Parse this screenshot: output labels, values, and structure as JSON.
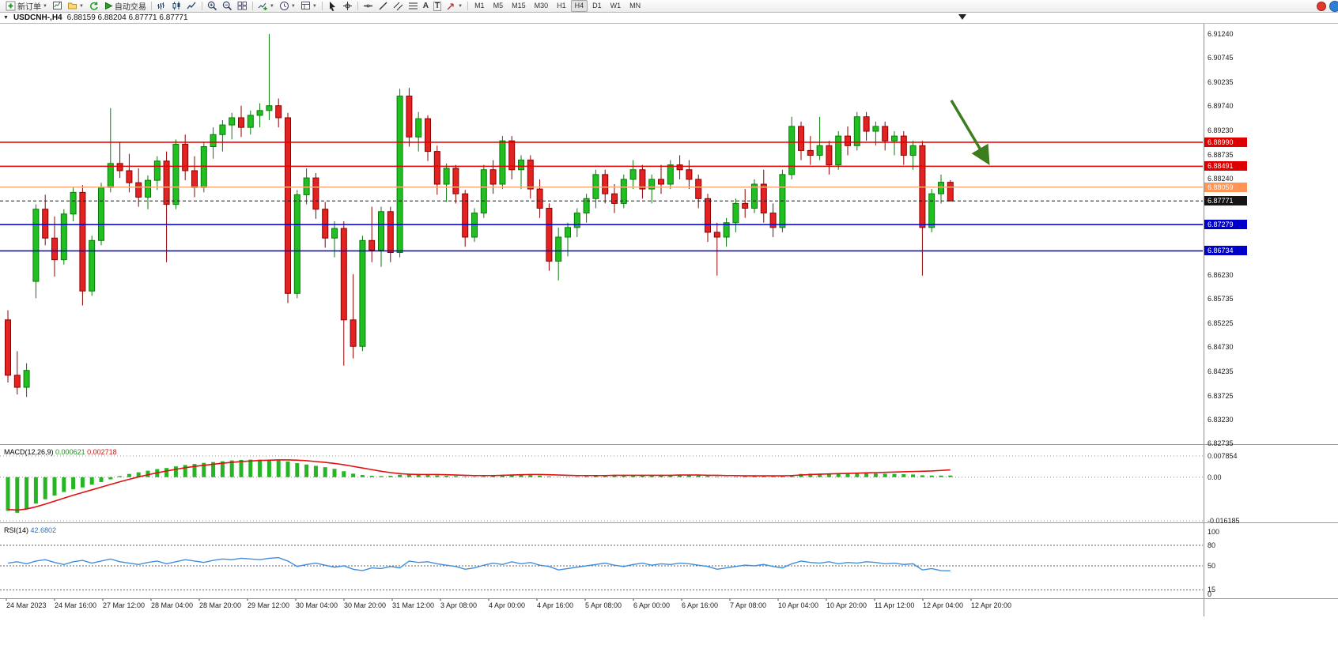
{
  "toolbar": {
    "new_order_label": "新订单",
    "autotrading_label": "自动交易",
    "text_tool_label": "A",
    "label_tool_label": "T",
    "timeframes": [
      "M1",
      "M5",
      "M15",
      "M30",
      "H1",
      "H4",
      "D1",
      "W1",
      "MN"
    ],
    "active_timeframe": "H4"
  },
  "chart": {
    "symbol_title": "USDCNH-,H4",
    "ohlc": "6.88159 6.88204 6.87771 6.87771",
    "price_axis": [
      "6.91240",
      "6.90745",
      "6.90235",
      "6.89740",
      "6.89230",
      "6.88735",
      "6.88240",
      "6.87745",
      "6.87235",
      "6.86740",
      "6.86230",
      "6.85735",
      "6.85225",
      "6.84730",
      "6.84235",
      "6.83725",
      "6.83230",
      "6.82735"
    ],
    "hlines": [
      {
        "price": 6.8899,
        "label": "6.88990",
        "color": "#e00000",
        "tag_bg": "#dd0000",
        "style": "solid"
      },
      {
        "price": 6.88491,
        "label": "6.88491",
        "color": "#e00000",
        "tag_bg": "#dd0000",
        "style": "solid"
      },
      {
        "price": 6.88059,
        "label": "6.88059",
        "color": "#ffab7a",
        "tag_bg": "#ff9454",
        "style": "solid"
      },
      {
        "price": 6.87771,
        "label": "6.87771",
        "color": "#151515",
        "tag_bg": "#151515",
        "style": "dash"
      },
      {
        "price": 6.87279,
        "label": "6.87279",
        "color": "#0000d4",
        "tag_bg": "#0000c8",
        "style": "solid"
      },
      {
        "price": 6.86734,
        "label": "6.86734",
        "color": "#0000d4",
        "tag_bg": "#0000c8",
        "style": "solid"
      }
    ]
  },
  "macd_panel": {
    "title": "MACD(12,26,9)",
    "value_main": "0.000621",
    "value_signal": "0.002718",
    "axis": [
      "0.007854",
      "0.00",
      "-0.016185"
    ]
  },
  "rsi_panel": {
    "title": "RSI(14)",
    "value": "42.6802",
    "axis": [
      "100",
      "80",
      "50",
      "15",
      "0"
    ]
  },
  "annotations": {
    "arrow_color": "#3c7d1e",
    "arrow_direction": "down-right"
  },
  "chart_data": {
    "type": "candlestick",
    "symbol": "USDCNH-",
    "timeframe": "H4",
    "ylim": [
      6.82735,
      6.9124
    ],
    "x_labels": [
      "24 Mar 2023",
      "24 Mar 16:00",
      "27 Mar 12:00",
      "28 Mar 04:00",
      "28 Mar 20:00",
      "29 Mar 12:00",
      "30 Mar 04:00",
      "30 Mar 20:00",
      "31 Mar 12:00",
      "3 Apr 08:00",
      "4 Apr 00:00",
      "4 Apr 16:00",
      "5 Apr 08:00",
      "6 Apr 00:00",
      "6 Apr 16:00",
      "7 Apr 08:00",
      "10 Apr 04:00",
      "10 Apr 20:00",
      "11 Apr 12:00",
      "12 Apr 04:00",
      "12 Apr 20:00"
    ],
    "hline_prices": [
      6.8899,
      6.88491,
      6.88059,
      6.87771,
      6.87279,
      6.86734
    ],
    "candles": [
      [
        6.853,
        6.855,
        6.84,
        6.8415
      ],
      [
        6.8415,
        6.8465,
        6.8375,
        6.839
      ],
      [
        6.839,
        6.844,
        6.837,
        6.8425
      ],
      [
        6.861,
        6.877,
        6.8575,
        6.876
      ],
      [
        6.876,
        6.879,
        6.8685,
        6.87
      ],
      [
        6.87,
        6.8745,
        6.862,
        6.8655
      ],
      [
        6.8655,
        6.876,
        6.8645,
        6.875
      ],
      [
        6.875,
        6.8805,
        6.8735,
        6.8795
      ],
      [
        6.8795,
        6.881,
        6.856,
        6.859
      ],
      [
        6.859,
        6.8705,
        6.858,
        6.8695
      ],
      [
        6.8695,
        6.8815,
        6.8685,
        6.8805
      ],
      [
        6.8805,
        6.897,
        6.8795,
        6.8855
      ],
      [
        6.8855,
        6.89,
        6.8825,
        6.884
      ],
      [
        6.884,
        6.8875,
        6.8795,
        6.8815
      ],
      [
        6.8815,
        6.8845,
        6.8765,
        6.8785
      ],
      [
        6.8785,
        6.883,
        6.876,
        6.882
      ],
      [
        6.882,
        6.887,
        6.88,
        6.886
      ],
      [
        6.886,
        6.888,
        6.865,
        6.877
      ],
      [
        6.877,
        6.8905,
        6.876,
        6.8895
      ],
      [
        6.8895,
        6.8915,
        6.882,
        6.884
      ],
      [
        6.884,
        6.887,
        6.8785,
        6.8805
      ],
      [
        6.8805,
        6.89,
        6.8795,
        6.889
      ],
      [
        6.889,
        6.893,
        6.8865,
        6.8915
      ],
      [
        6.8915,
        6.8945,
        6.888,
        6.8935
      ],
      [
        6.8935,
        6.896,
        6.8905,
        6.895
      ],
      [
        6.895,
        6.8975,
        6.891,
        6.893
      ],
      [
        6.893,
        6.8965,
        6.8915,
        6.8955
      ],
      [
        6.8955,
        6.898,
        6.893,
        6.8965
      ],
      [
        6.8965,
        6.9124,
        6.8945,
        6.8975
      ],
      [
        6.8975,
        6.899,
        6.893,
        6.895
      ],
      [
        6.895,
        6.896,
        6.8565,
        6.8585
      ],
      [
        6.8585,
        6.88,
        6.8575,
        6.879
      ],
      [
        6.879,
        6.8845,
        6.877,
        6.8825
      ],
      [
        6.8825,
        6.8835,
        6.874,
        6.876
      ],
      [
        6.876,
        6.8775,
        6.868,
        6.87
      ],
      [
        6.87,
        6.8735,
        6.866,
        6.872
      ],
      [
        6.872,
        6.8735,
        6.8435,
        6.853
      ],
      [
        6.853,
        6.8625,
        6.845,
        6.8475
      ],
      [
        6.8475,
        6.8705,
        6.8465,
        6.8695
      ],
      [
        6.8695,
        6.8765,
        6.865,
        6.8675
      ],
      [
        6.8675,
        6.8765,
        6.864,
        6.8755
      ],
      [
        6.8755,
        6.8765,
        6.865,
        6.867
      ],
      [
        6.867,
        6.901,
        6.866,
        6.8995
      ],
      [
        6.8995,
        6.9012,
        6.889,
        6.891
      ],
      [
        6.891,
        6.8962,
        6.888,
        6.8948
      ],
      [
        6.8948,
        6.8955,
        6.886,
        6.888
      ],
      [
        6.888,
        6.8892,
        6.879,
        6.8812
      ],
      [
        6.8812,
        6.8855,
        6.8775,
        6.8845
      ],
      [
        6.8845,
        6.8852,
        6.8772,
        6.8792
      ],
      [
        6.8792,
        6.88,
        6.8682,
        6.8702
      ],
      [
        6.8702,
        6.8762,
        6.8692,
        6.8752
      ],
      [
        6.8752,
        6.8852,
        6.8742,
        6.8842
      ],
      [
        6.8842,
        6.8862,
        6.8792,
        6.8812
      ],
      [
        6.8812,
        6.8912,
        6.8802,
        6.8902
      ],
      [
        6.8902,
        6.8912,
        6.8822,
        6.8842
      ],
      [
        6.8842,
        6.8872,
        6.8802,
        6.8862
      ],
      [
        6.8862,
        6.8872,
        6.8782,
        6.8802
      ],
      [
        6.8802,
        6.8822,
        6.8742,
        6.8762
      ],
      [
        6.8762,
        6.8772,
        6.8632,
        6.8652
      ],
      [
        6.8652,
        6.8722,
        6.8612,
        6.8702
      ],
      [
        6.8702,
        6.8732,
        6.8662,
        6.8722
      ],
      [
        6.8722,
        6.8762,
        6.8702,
        6.8752
      ],
      [
        6.8752,
        6.8792,
        6.8732,
        6.8782
      ],
      [
        6.8782,
        6.8842,
        6.8762,
        6.8832
      ],
      [
        6.8832,
        6.8842,
        6.8772,
        6.8792
      ],
      [
        6.8792,
        6.8812,
        6.8752,
        6.8772
      ],
      [
        6.8772,
        6.8832,
        6.8762,
        6.8822
      ],
      [
        6.8822,
        6.8862,
        6.8802,
        6.8842
      ],
      [
        6.8842,
        6.8852,
        6.8782,
        6.8802
      ],
      [
        6.8802,
        6.8832,
        6.8772,
        6.8822
      ],
      [
        6.8822,
        6.8852,
        6.8792,
        6.8812
      ],
      [
        6.8812,
        6.8862,
        6.8802,
        6.8852
      ],
      [
        6.8852,
        6.8872,
        6.8822,
        6.8842
      ],
      [
        6.8842,
        6.8862,
        6.8802,
        6.8822
      ],
      [
        6.8822,
        6.8832,
        6.8762,
        6.8782
      ],
      [
        6.8782,
        6.8792,
        6.8692,
        6.8712
      ],
      [
        6.8712,
        6.8732,
        6.8622,
        6.8702
      ],
      [
        6.8702,
        6.8742,
        6.8682,
        6.8732
      ],
      [
        6.8732,
        6.8782,
        6.8712,
        6.8772
      ],
      [
        6.8772,
        6.8802,
        6.8742,
        6.8762
      ],
      [
        6.8762,
        6.8822,
        6.8752,
        6.8812
      ],
      [
        6.8812,
        6.8842,
        6.8732,
        6.8752
      ],
      [
        6.8752,
        6.8772,
        6.8702,
        6.8722
      ],
      [
        6.8722,
        6.8842,
        6.8712,
        6.8832
      ],
      [
        6.8832,
        6.8952,
        6.8822,
        6.8932
      ],
      [
        6.8932,
        6.8942,
        6.8862,
        6.8882
      ],
      [
        6.8882,
        6.8912,
        6.8852,
        6.8872
      ],
      [
        6.8872,
        6.8952,
        6.8862,
        6.8892
      ],
      [
        6.8892,
        6.8902,
        6.8832,
        6.8852
      ],
      [
        6.8852,
        6.8922,
        6.8842,
        6.8912
      ],
      [
        6.8912,
        6.8932,
        6.8872,
        6.8892
      ],
      [
        6.8892,
        6.8962,
        6.8882,
        6.8952
      ],
      [
        6.8952,
        6.8962,
        6.8902,
        6.8922
      ],
      [
        6.8922,
        6.8942,
        6.8892,
        6.8932
      ],
      [
        6.8932,
        6.8942,
        6.8882,
        6.8902
      ],
      [
        6.8902,
        6.8922,
        6.8872,
        6.8912
      ],
      [
        6.8912,
        6.8922,
        6.8852,
        6.8872
      ],
      [
        6.8872,
        6.8902,
        6.8842,
        6.8892
      ],
      [
        6.8892,
        6.8902,
        6.8622,
        6.8722
      ],
      [
        6.8722,
        6.8802,
        6.8712,
        6.8792
      ],
      [
        6.8792,
        6.8832,
        6.8772,
        6.8816
      ],
      [
        6.88159,
        6.88204,
        6.87771,
        6.87771
      ]
    ],
    "macd": {
      "ylim": [
        -0.016185,
        0.007854
      ],
      "zero_line": 0,
      "histogram": [
        -0.0125,
        -0.0132,
        -0.0118,
        -0.0098,
        -0.0082,
        -0.0068,
        -0.0055,
        -0.0045,
        -0.0038,
        -0.0028,
        -0.0018,
        -0.0008,
        0.0004,
        0.0012,
        0.0018,
        0.0024,
        0.003,
        0.0034,
        0.004,
        0.0045,
        0.0049,
        0.0053,
        0.0056,
        0.0059,
        0.0062,
        0.0064,
        0.0065,
        0.0065,
        0.0064,
        0.0062,
        0.0058,
        0.0052,
        0.0047,
        0.0042,
        0.0037,
        0.0031,
        0.0022,
        0.0013,
        0.0008,
        0.0005,
        0.0004,
        0.0005,
        0.0009,
        0.0012,
        0.0012,
        0.001,
        0.0007,
        0.0005,
        0.0004,
        0.0002,
        0.0002,
        0.0003,
        0.0005,
        0.0008,
        0.0009,
        0.0009,
        0.0008,
        0.0006,
        0.0003,
        0.0001,
        0.0001,
        0.0002,
        0.0003,
        0.0005,
        0.0006,
        0.0006,
        0.0005,
        0.0006,
        0.0007,
        0.0006,
        0.0006,
        0.0007,
        0.0008,
        0.0007,
        0.0006,
        0.0004,
        0.0002,
        0.0001,
        0.0002,
        0.0003,
        0.0004,
        0.0004,
        0.0003,
        0.0004,
        0.0008,
        0.0012,
        0.0013,
        0.0013,
        0.0012,
        0.0013,
        0.0014,
        0.0015,
        0.0015,
        0.0014,
        0.0013,
        0.0012,
        0.0011,
        0.001,
        0.0007,
        0.0006,
        0.0006,
        0.000621
      ],
      "signal": [
        -0.012,
        -0.0122,
        -0.0118,
        -0.011,
        -0.01,
        -0.0089,
        -0.0078,
        -0.0067,
        -0.0057,
        -0.0047,
        -0.0037,
        -0.0027,
        -0.0017,
        -0.0008,
        0.0001,
        0.0009,
        0.0016,
        0.0023,
        0.0029,
        0.0035,
        0.004,
        0.0044,
        0.0048,
        0.0052,
        0.0055,
        0.0058,
        0.006,
        0.0062,
        0.0063,
        0.0064,
        0.0064,
        0.0063,
        0.0061,
        0.0058,
        0.0055,
        0.0051,
        0.0046,
        0.004,
        0.0034,
        0.0028,
        0.0022,
        0.0017,
        0.0013,
        0.0011,
        0.001,
        0.001,
        0.001,
        0.0009,
        0.0008,
        0.0007,
        0.0006,
        0.0006,
        0.0006,
        0.0007,
        0.0008,
        0.0009,
        0.001,
        0.001,
        0.0009,
        0.0008,
        0.0007,
        0.0006,
        0.0006,
        0.0006,
        0.0006,
        0.0007,
        0.0007,
        0.0007,
        0.0007,
        0.0007,
        0.0007,
        0.0007,
        0.0008,
        0.0008,
        0.0008,
        0.0007,
        0.0007,
        0.0006,
        0.0006,
        0.0005,
        0.0005,
        0.0005,
        0.0005,
        0.0005,
        0.0006,
        0.0008,
        0.001,
        0.0011,
        0.0012,
        0.0013,
        0.0014,
        0.0015,
        0.0016,
        0.0017,
        0.0018,
        0.0019,
        0.002,
        0.0021,
        0.0022,
        0.0023,
        0.0025,
        0.002718
      ]
    },
    "rsi": {
      "ylim": [
        0,
        100
      ],
      "levels": [
        80,
        50,
        15
      ],
      "current": 42.6802,
      "series": [
        54,
        56,
        53,
        57,
        59,
        55,
        52,
        56,
        58,
        54,
        57,
        60,
        56,
        54,
        52,
        55,
        57,
        53,
        56,
        59,
        57,
        55,
        58,
        60,
        59,
        61,
        60,
        59,
        61,
        62,
        57,
        49,
        52,
        54,
        51,
        48,
        50,
        45,
        43,
        47,
        46,
        49,
        47,
        57,
        55,
        56,
        53,
        51,
        49,
        45,
        47,
        51,
        54,
        52,
        56,
        53,
        55,
        51,
        49,
        44,
        46,
        48,
        50,
        52,
        54,
        51,
        49,
        52,
        54,
        51,
        53,
        52,
        54,
        53,
        51,
        49,
        45,
        47,
        49,
        51,
        50,
        52,
        49,
        47,
        53,
        57,
        55,
        54,
        56,
        53,
        55,
        54,
        56,
        55,
        53,
        54,
        52,
        53,
        44,
        46,
        43,
        42.6802
      ]
    }
  }
}
